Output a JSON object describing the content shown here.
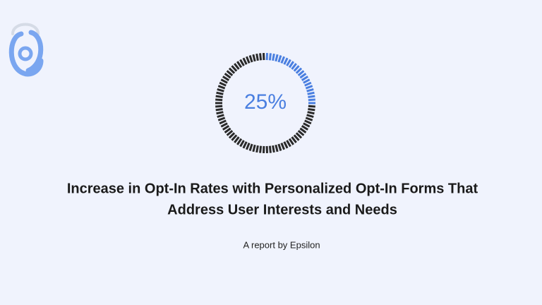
{
  "chart_data": {
    "type": "gauge",
    "title": [
      "Increase in Opt-In Rates with Personalized Opt-In Forms That",
      "Address User Interests and Needs"
    ],
    "subtitle": "A report by Epsilon",
    "value": 25,
    "value_label": "25%",
    "ylim": [
      0,
      100
    ],
    "color": "#4a7fe0",
    "track_color": "#2a2a2a"
  }
}
